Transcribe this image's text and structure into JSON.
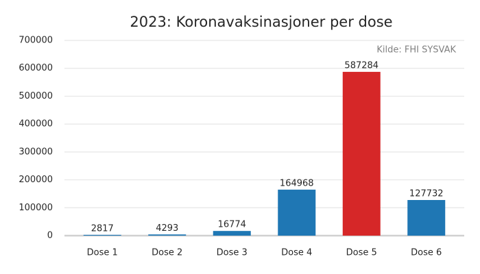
{
  "chart_data": {
    "type": "bar",
    "title": "2023: Koronavaksinasjoner per dose",
    "annotation": "Kilde: FHI SYSVAK",
    "categories": [
      "Dose 1",
      "Dose 2",
      "Dose 3",
      "Dose 4",
      "Dose 5",
      "Dose 6"
    ],
    "values": [
      2817,
      4293,
      16774,
      164968,
      587284,
      127732
    ],
    "colors": [
      "#1f77b4",
      "#1f77b4",
      "#1f77b4",
      "#1f77b4",
      "#d62728",
      "#1f77b4"
    ],
    "ylim": [
      0,
      700000
    ],
    "yticks": [
      0,
      100000,
      200000,
      300000,
      400000,
      500000,
      600000,
      700000
    ],
    "grid": true
  }
}
